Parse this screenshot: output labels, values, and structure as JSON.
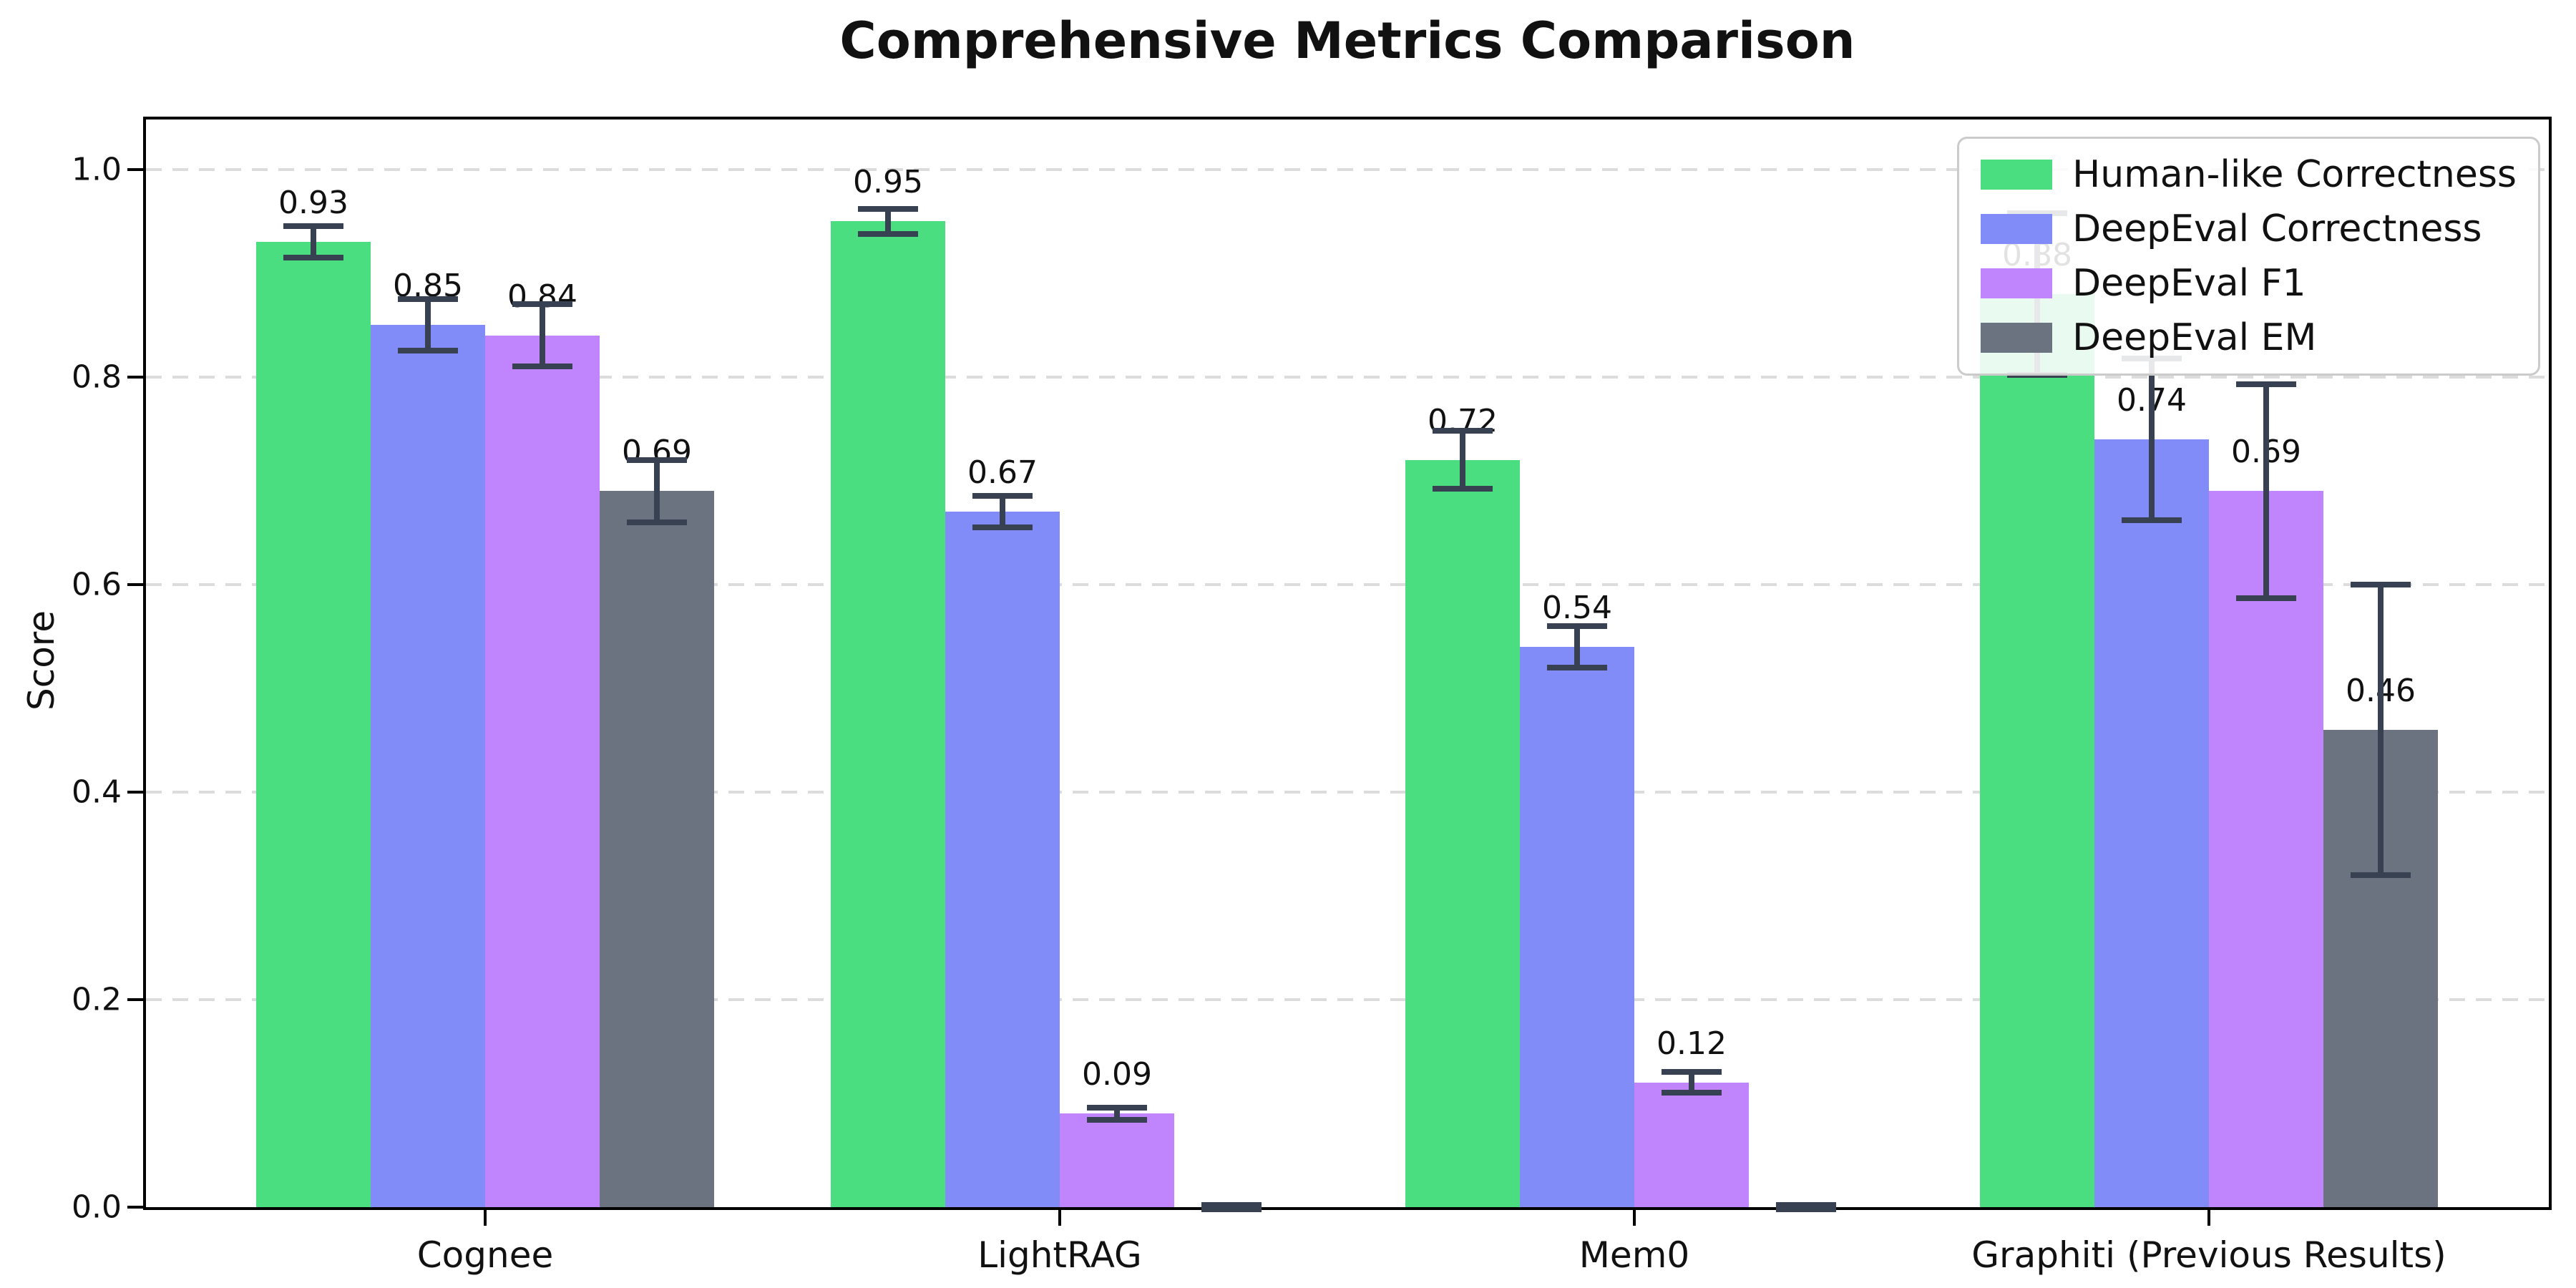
{
  "chart_data": {
    "type": "bar",
    "title": "Comprehensive Metrics Comparison",
    "xlabel": "",
    "ylabel": "Score",
    "ylim": [
      0,
      1.048
    ],
    "yticks": [
      "0.0",
      "0.2",
      "0.4",
      "0.6",
      "0.8",
      "1.0"
    ],
    "grid": "horizontal dashed lightgray",
    "legend_position": "upper right",
    "bar_label_offset": 0.02,
    "error_color": "#374151",
    "categories": [
      "Cognee",
      "LightRAG",
      "Mem0",
      "Graphiti (Previous Results)"
    ],
    "series": [
      {
        "name": "Human-like Correctness",
        "color": "#4ade80",
        "values": [
          0.93,
          0.95,
          0.72,
          0.88
        ],
        "errors": [
          0.015,
          0.012,
          0.028,
          0.078
        ],
        "labels": [
          "0.93",
          "0.95",
          "0.72",
          "0.88"
        ]
      },
      {
        "name": "DeepEval Correctness",
        "color": "#818cf8",
        "values": [
          0.85,
          0.67,
          0.54,
          0.74
        ],
        "errors": [
          0.025,
          0.015,
          0.02,
          0.078
        ],
        "labels": [
          "0.85",
          "0.67",
          "0.54",
          "0.74"
        ]
      },
      {
        "name": "DeepEval F1",
        "color": "#c084fc",
        "values": [
          0.84,
          0.09,
          0.12,
          0.69
        ],
        "errors": [
          0.03,
          0.006,
          0.01,
          0.103
        ],
        "labels": [
          "0.84",
          "0.09",
          "0.12",
          "0.69"
        ]
      },
      {
        "name": "DeepEval EM",
        "color": "#6b7280",
        "values": [
          0.69,
          0.0,
          0.0,
          0.46
        ],
        "errors": [
          0.03,
          0.002,
          0.002,
          0.14
        ],
        "labels": [
          "0.69",
          "",
          "",
          "0.46"
        ]
      }
    ]
  }
}
